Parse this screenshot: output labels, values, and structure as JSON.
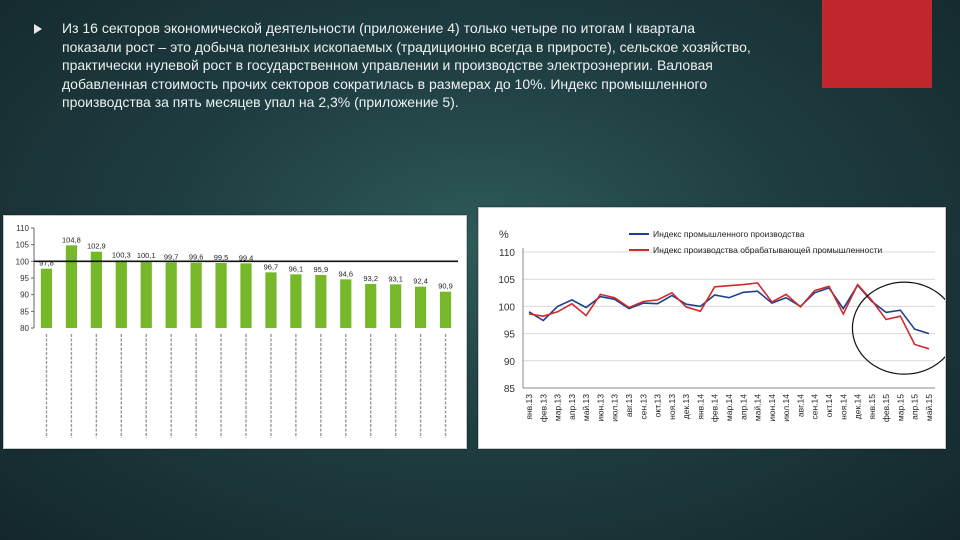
{
  "slide": {
    "paragraph": "Из 16 секторов экономической деятельности (приложение 4) только четыре по итогам I квартала показали рост – это добыча полезных ископаемых (традиционно всегда в приросте), сельское хозяйство, практически нулевой рост в государственном управлении и производстве электроэнергии. Валовая добавленная стоимость прочих секторов сократилась в размерах до 10%. Индекс промышленного производства за пять месяцев упал на 2,3% (приложение 5).",
    "colors": {
      "accent": "#c0282e",
      "background": "#1f3e42",
      "bar": "#77b82a"
    }
  },
  "chart_data": [
    {
      "type": "bar",
      "ylim": [
        80,
        110
      ],
      "yticks": [
        80,
        85,
        90,
        95,
        100,
        105,
        110
      ],
      "reference_line": 100,
      "grid": false,
      "values": [
        97.8,
        104.8,
        102.9,
        100.3,
        100.1,
        99.7,
        99.6,
        99.5,
        99.4,
        96.7,
        96.1,
        95.9,
        94.6,
        93.2,
        93.1,
        92.4,
        90.9
      ],
      "value_labels": [
        "97,8",
        "104,8",
        "102,9",
        "100,3",
        "100,1",
        "99,7",
        "99,6",
        "99,5",
        "99,4",
        "96,7",
        "96,1",
        "95,9",
        "94,6",
        "93,2",
        "93,1",
        "92,4",
        "90,9"
      ]
    },
    {
      "type": "line",
      "ylabel": "%",
      "ylim": [
        85,
        110
      ],
      "yticks": [
        85,
        90,
        95,
        100,
        105,
        110
      ],
      "grid": true,
      "legend_placement": "top",
      "x": [
        "янв.13",
        "фев.13",
        "мар.13",
        "апр.13",
        "май.13",
        "июн.13",
        "июл.13",
        "авг.13",
        "сен.13",
        "окт.13",
        "ноя.13",
        "дек.13",
        "янв.14",
        "фев.14",
        "мар.14",
        "апр.14",
        "май.14",
        "июн.14",
        "июл.14",
        "авг.14",
        "сен.14",
        "окт.14",
        "ноя.14",
        "дек.14",
        "янв.15",
        "фев.15",
        "мар.15",
        "апр.15",
        "май.15"
      ],
      "series": [
        {
          "name": "Индекс промышленного производства",
          "color": "#1f3f8f",
          "values": [
            99.0,
            97.4,
            100.0,
            101.2,
            99.8,
            101.8,
            101.3,
            99.6,
            100.6,
            100.5,
            102.0,
            100.4,
            100.0,
            102.1,
            101.6,
            102.6,
            102.8,
            100.6,
            101.6,
            100.0,
            102.5,
            103.4,
            99.6,
            103.9,
            100.9,
            98.9,
            99.3,
            95.8,
            95.0
          ],
          "color_name": "navy"
        },
        {
          "name": "Индекс производства обрабатывающей промышленности",
          "color": "#d12a2a",
          "values": [
            98.6,
            98.2,
            99.0,
            100.5,
            98.3,
            102.2,
            101.6,
            99.8,
            100.9,
            101.2,
            102.5,
            99.9,
            99.1,
            103.6,
            103.8,
            104.0,
            104.3,
            100.8,
            102.2,
            99.9,
            102.9,
            103.7,
            98.6,
            104.0,
            101.1,
            97.6,
            98.2,
            93.0,
            92.2
          ],
          "color_name": "red"
        }
      ],
      "annotation": "circle"
    }
  ]
}
